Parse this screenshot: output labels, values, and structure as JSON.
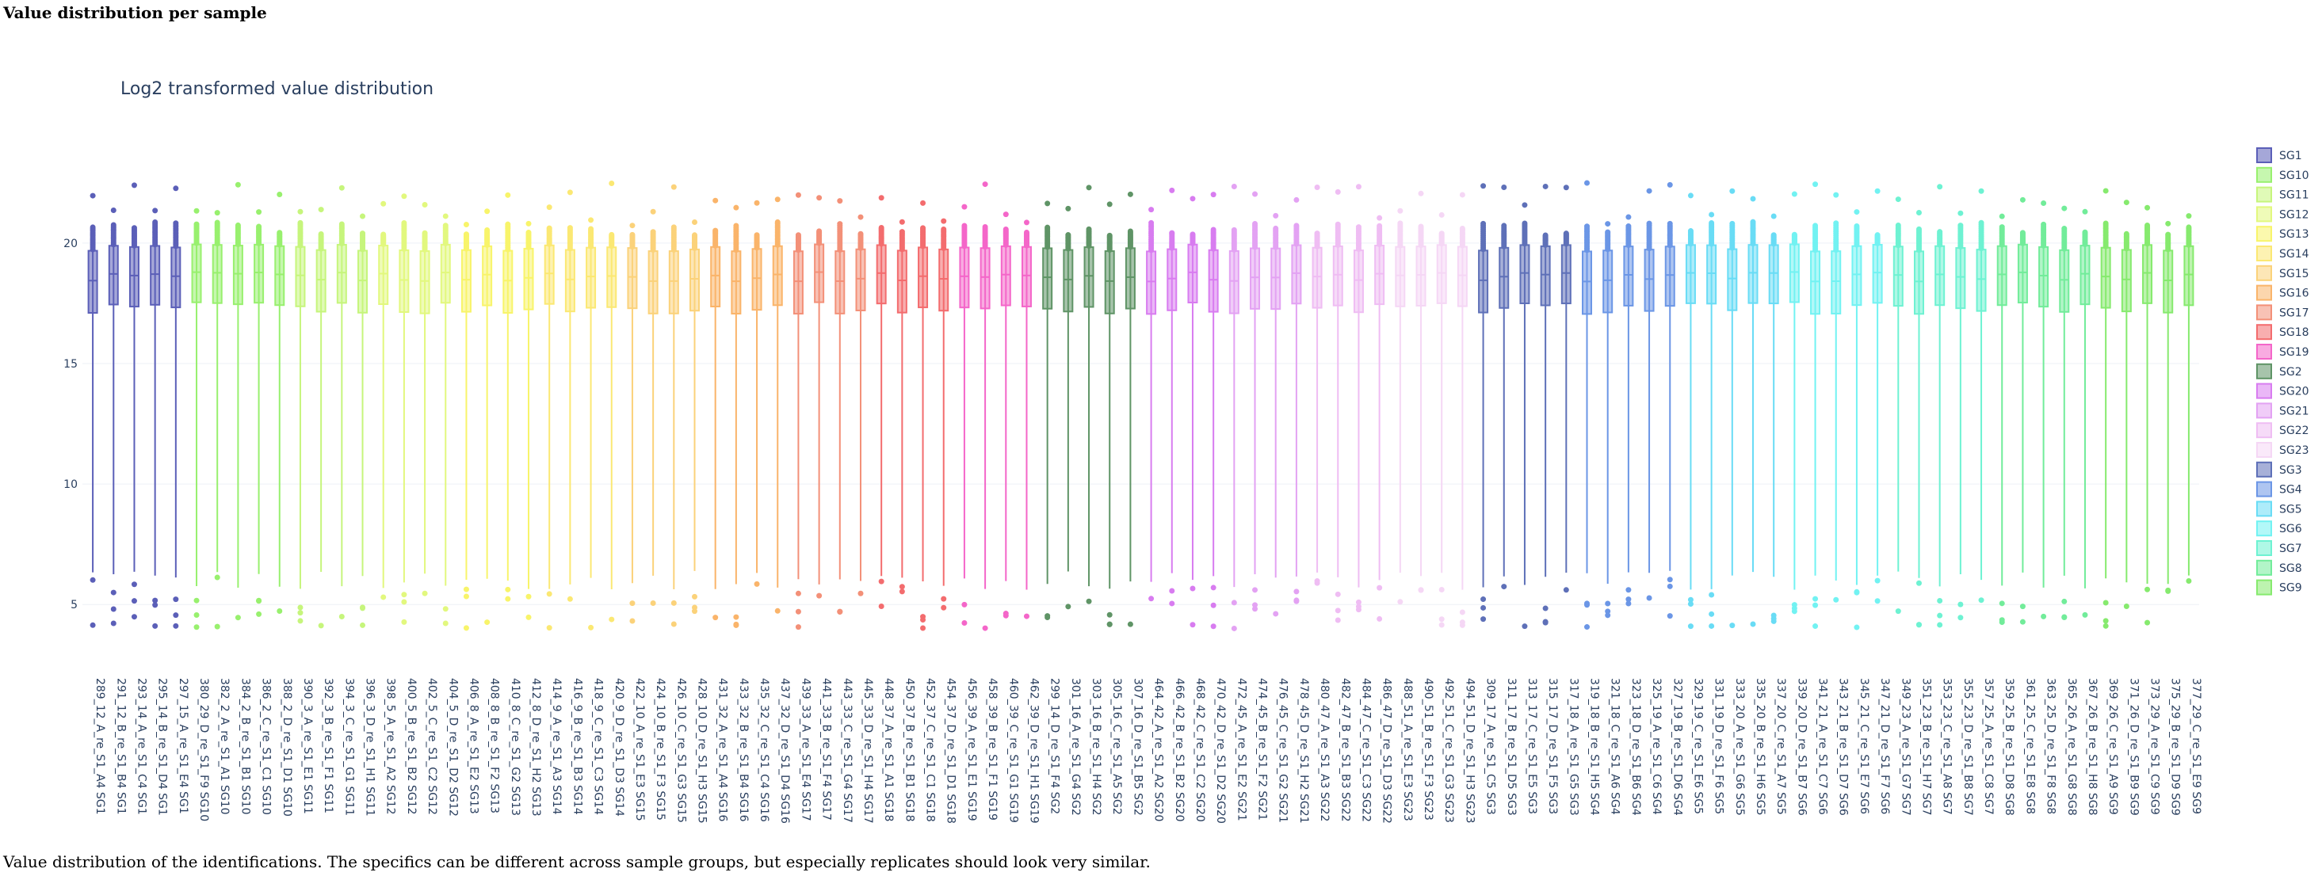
{
  "page": {
    "heading": "Value distribution per sample",
    "caption": "Value distribution of the identifications. The specifics can be different across sample groups, but especially replicates should look very similar."
  },
  "chart_data": {
    "type": "box",
    "title": "Log2 transformed value distribution",
    "xlabel": "",
    "ylabel": "",
    "ylim": [
      3.2,
      24.5
    ],
    "yticks": [
      5,
      10,
      15,
      20
    ],
    "grid": true,
    "legend_position": "right",
    "groups": [
      {
        "name": "SG1",
        "color": "#5b5fb8",
        "samples": [
          "289_12_A_re_S1_A4 SG1",
          "291_12_B_re_S1_B4 SG1",
          "293_14_A_re_S1_C4 SG1",
          "295_14_B_re_S1_D4 SG1",
          "297_15_A_re_S1_E4 SG1"
        ]
      },
      {
        "name": "SG10",
        "color": "#98f06e",
        "samples": [
          "380_29_D_re_S1_F9 SG10",
          "382_2_A_re_S1_A1 SG10",
          "384_2_B_re_S1_B1 SG10",
          "386_2_C_re_S1_C1 SG10",
          "388_2_D_re_S1_D1 SG10"
        ]
      },
      {
        "name": "SG11",
        "color": "#c6f57c",
        "samples": [
          "390_3_A_re_S1_E1 SG11",
          "392_3_B_re_S1_F1 SG11",
          "394_3_C_re_S1_G1 SG11",
          "396_3_D_re_S1_H1 SG11"
        ]
      },
      {
        "name": "SG12",
        "color": "#e2f87e",
        "samples": [
          "398_5_A_re_S1_A2 SG12",
          "400_5_B_re_S1_B2 SG12",
          "402_5_C_re_S1_C2 SG12",
          "404_5_D_re_S1_D2 SG12"
        ]
      },
      {
        "name": "SG13",
        "color": "#f8f46a",
        "samples": [
          "406_8_A_re_S1_E2 SG13",
          "408_8_B_re_S1_F2 SG13",
          "410_8_C_re_S1_G2 SG13",
          "412_8_D_re_S1_H2 SG13"
        ]
      },
      {
        "name": "SG14",
        "color": "#fbe873",
        "samples": [
          "414_9_A_re_S1_A3 SG14",
          "416_9_B_re_S1_B3 SG14",
          "418_9_C_re_S1_C3 SG14",
          "420_9_D_re_S1_D3 SG14"
        ]
      },
      {
        "name": "SG15",
        "color": "#fbd27a",
        "samples": [
          "422_10_A_re_S1_E3 SG15",
          "424_10_B_re_S1_F3 SG15",
          "426_10_C_re_S1_G3 SG15",
          "428_10_D_re_S1_H3 SG15"
        ]
      },
      {
        "name": "SG16",
        "color": "#fab46a",
        "samples": [
          "431_32_A_re_S1_A4 SG16",
          "433_32_B_re_S1_B4 SG16",
          "435_32_C_re_S1_C4 SG16",
          "437_32_D_re_S1_D4 SG16"
        ]
      },
      {
        "name": "SG17",
        "color": "#f39078",
        "samples": [
          "439_33_A_re_S1_E4 SG17",
          "441_33_B_re_S1_F4 SG17",
          "443_33_C_re_S1_G4 SG17",
          "445_33_D_re_S1_H4 SG17"
        ]
      },
      {
        "name": "SG18",
        "color": "#f36c6e",
        "samples": [
          "448_37_A_re_S1_A1 SG18",
          "450_37_B_re_S1_B1 SG18",
          "452_37_C_re_S1_C1 SG18",
          "454_37_D_re_S1_D1 SG18"
        ]
      },
      {
        "name": "SG19",
        "color": "#f466c9",
        "samples": [
          "456_39_A_re_S1_E1 SG19",
          "458_39_B_re_S1_F1 SG19",
          "460_39_C_re_S1_G1 SG19",
          "462_39_D_re_S1_H1 SG19"
        ]
      },
      {
        "name": "SG2",
        "color": "#5f9466",
        "samples": [
          "299_14_D_re_S1_F4 SG2",
          "301_16_A_re_S1_G4 SG2",
          "303_16_B_re_S1_H4 SG2",
          "305_16_C_re_S1_A5 SG2",
          "307_16_D_re_S1_B5 SG2"
        ]
      },
      {
        "name": "SG20",
        "color": "#d87cf0",
        "samples": [
          "464_42_A_re_S1_A2 SG20",
          "466_42_B_re_S1_B2 SG20",
          "468_42_C_re_S1_C2 SG20",
          "470_42_D_re_S1_D2 SG20"
        ]
      },
      {
        "name": "SG21",
        "color": "#e3a2f3",
        "samples": [
          "472_45_A_re_S1_E2 SG21",
          "474_45_B_re_S1_F2 SG21",
          "476_45_C_re_S1_G2 SG21",
          "478_45_D_re_S1_H2 SG21"
        ]
      },
      {
        "name": "SG22",
        "color": "#efbdf3",
        "samples": [
          "480_47_A_re_S1_A3 SG22",
          "482_47_B_re_S1_B3 SG22",
          "484_47_C_re_S1_C3 SG22",
          "486_47_D_re_S1_D3 SG22"
        ]
      },
      {
        "name": "SG23",
        "color": "#f5d7f5",
        "samples": [
          "488_51_A_re_S1_E3 SG23",
          "490_51_B_re_S1_F3 SG23",
          "492_51_C_re_S1_G3 SG23",
          "494_51_D_re_S1_H3 SG23"
        ]
      },
      {
        "name": "SG3",
        "color": "#5e70b8",
        "samples": [
          "309_17_A_re_S1_C5 SG3",
          "311_17_B_re_S1_D5 SG3",
          "313_17_C_re_S1_E5 SG3",
          "315_17_D_re_S1_F5 SG3",
          "317_18_A_re_S1_G5 SG3"
        ]
      },
      {
        "name": "SG4",
        "color": "#6b96e6",
        "samples": [
          "319_18_B_re_S1_H5 SG4",
          "321_18_C_re_S1_A6 SG4",
          "323_18_D_re_S1_B6 SG4",
          "325_19_A_re_S1_C6 SG4",
          "327_19_B_re_S1_D6 SG4"
        ]
      },
      {
        "name": "SG5",
        "color": "#69dcf5",
        "samples": [
          "329_19_C_re_S1_E6 SG5",
          "331_19_D_re_S1_F6 SG5",
          "333_20_A_re_S1_G6 SG5",
          "335_20_B_re_S1_H6 SG5",
          "337_20_C_re_S1_A7 SG5"
        ]
      },
      {
        "name": "SG6",
        "color": "#72f2f2",
        "samples": [
          "339_20_D_re_S1_B7 SG6",
          "341_21_A_re_S1_C7 SG6",
          "343_21_B_re_S1_D7 SG6",
          "345_21_C_re_S1_E7 SG6",
          "347_21_D_re_S1_F7 SG6"
        ]
      },
      {
        "name": "SG7",
        "color": "#6ef2d2",
        "samples": [
          "349_23_A_re_S1_G7 SG7",
          "351_23_B_re_S1_H7 SG7",
          "353_23_C_re_S1_A8 SG7",
          "355_23_D_re_S1_B8 SG7",
          "357_25_A_re_S1_C8 SG7"
        ]
      },
      {
        "name": "SG8",
        "color": "#72ec9a",
        "samples": [
          "359_25_B_re_S1_D8 SG8",
          "361_25_C_re_S1_E8 SG8",
          "363_25_D_re_S1_F8 SG8",
          "365_26_A_re_S1_G8 SG8",
          "367_26_B_re_S1_H8 SG8"
        ]
      },
      {
        "name": "SG9",
        "color": "#86ea6e",
        "samples": [
          "369_26_C_re_S1_A9 SG9",
          "371_26_D_re_S1_B9 SG9",
          "373_29_A_re_S1_C9 SG9",
          "375_29_B_re_S1_D9 SG9",
          "377_29_C_re_S1_E9 SG9"
        ]
      }
    ],
    "legend_order": [
      "SG1",
      "SG10",
      "SG11",
      "SG12",
      "SG13",
      "SG14",
      "SG15",
      "SG16",
      "SG17",
      "SG18",
      "SG19",
      "SG2",
      "SG20",
      "SG21",
      "SG22",
      "SG23",
      "SG3",
      "SG4",
      "SG5",
      "SG6",
      "SG7",
      "SG8",
      "SG9"
    ],
    "distribution": {
      "lower_fence": 6.0,
      "q1": 17.3,
      "median": 18.6,
      "q3": 19.8,
      "upper_fence": 20.6,
      "outlier_min": 4.0,
      "outlier_max": 22.5
    }
  }
}
